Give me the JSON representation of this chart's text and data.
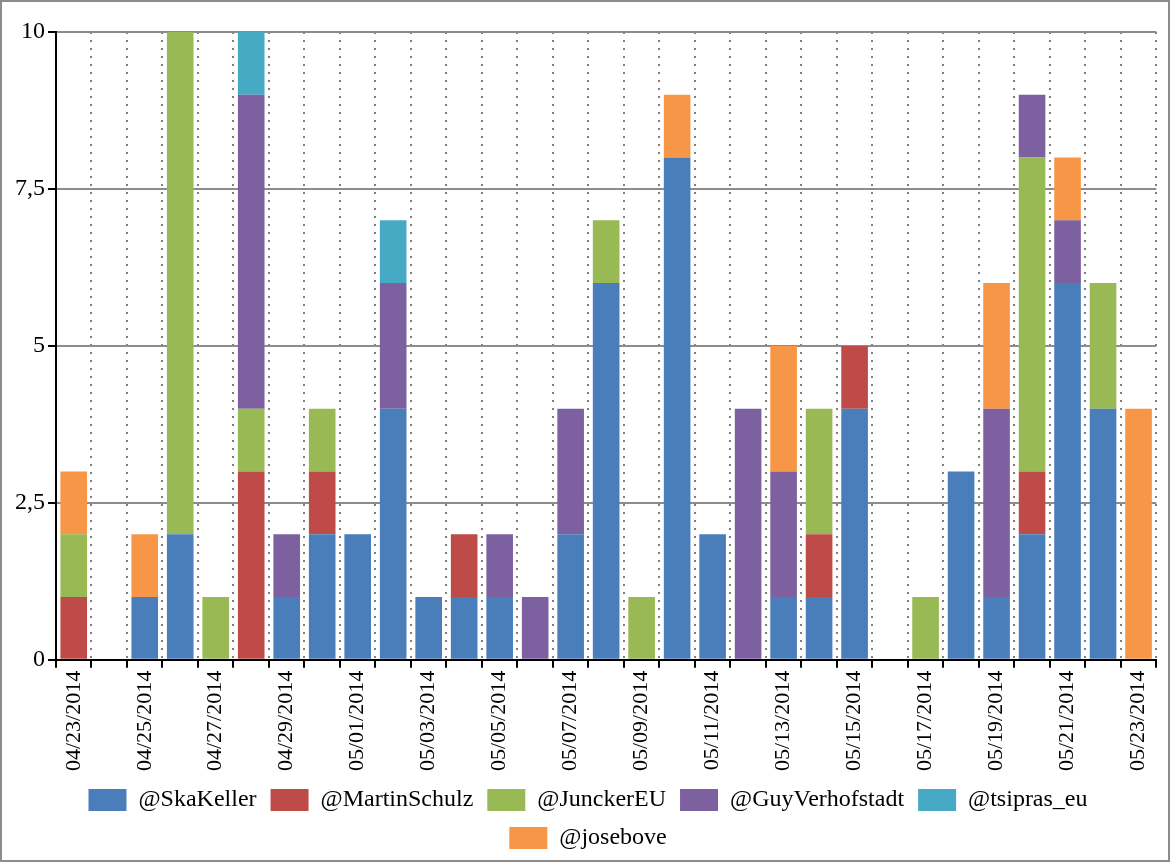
{
  "chart_data": {
    "type": "bar",
    "stacked": true,
    "categories": [
      "04/23/2014",
      null,
      "04/25/2014",
      null,
      "04/27/2014",
      null,
      "04/29/2014",
      null,
      "05/01/2014",
      null,
      "05/03/2014",
      null,
      "05/05/2014",
      null,
      "05/07/2014",
      null,
      "05/09/2014",
      null,
      "05/11/2014",
      null,
      "05/13/2014",
      null,
      "05/15/2014",
      null,
      "05/17/2014",
      null,
      "05/19/2014",
      null,
      "05/21/2014",
      null,
      "05/23/2014"
    ],
    "series": [
      {
        "name": "@SkaKeller",
        "color": "#4a7ebb",
        "values": [
          null,
          null,
          1,
          2,
          null,
          null,
          1,
          2,
          2,
          4,
          1,
          1,
          1,
          null,
          2,
          6,
          null,
          8,
          2,
          null,
          1,
          1,
          4,
          null,
          null,
          3,
          1,
          2,
          6,
          4,
          null
        ]
      },
      {
        "name": "@MartinSchulz",
        "color": "#be4b48",
        "values": [
          1,
          null,
          null,
          null,
          null,
          3,
          null,
          1,
          null,
          null,
          null,
          1,
          null,
          null,
          null,
          null,
          null,
          null,
          null,
          null,
          null,
          1,
          1,
          null,
          null,
          null,
          null,
          1,
          null,
          null,
          null
        ]
      },
      {
        "name": "@JunckerEU",
        "color": "#98b954",
        "values": [
          1,
          null,
          null,
          8,
          1,
          1,
          null,
          1,
          null,
          null,
          null,
          null,
          null,
          null,
          null,
          1,
          1,
          null,
          null,
          null,
          null,
          2,
          null,
          null,
          1,
          null,
          null,
          5,
          null,
          2,
          null
        ]
      },
      {
        "name": "@GuyVerhofstadt",
        "color": "#7d60a0",
        "values": [
          null,
          null,
          null,
          null,
          null,
          5,
          1,
          null,
          null,
          2,
          null,
          null,
          1,
          1,
          2,
          null,
          null,
          null,
          null,
          4,
          2,
          null,
          null,
          null,
          null,
          null,
          3,
          1,
          1,
          null,
          null
        ]
      },
      {
        "name": "@tsipras_eu",
        "color": "#46aac5",
        "values": [
          null,
          null,
          null,
          null,
          null,
          1,
          null,
          null,
          null,
          1,
          null,
          null,
          null,
          null,
          null,
          null,
          null,
          null,
          null,
          null,
          null,
          null,
          null,
          null,
          null,
          null,
          null,
          null,
          null,
          null,
          null
        ]
      },
      {
        "name": "@josebove",
        "color": "#f79646",
        "values": [
          1,
          null,
          1,
          null,
          null,
          null,
          null,
          null,
          null,
          null,
          null,
          null,
          null,
          null,
          null,
          null,
          null,
          1,
          null,
          null,
          2,
          null,
          null,
          null,
          null,
          null,
          2,
          null,
          1,
          null,
          4
        ]
      }
    ],
    "ylim": [
      0,
      10
    ],
    "yticks": [
      0,
      {
        "value": 2.5,
        "label": "2,5"
      },
      5,
      {
        "value": 7.5,
        "label": "7,5"
      },
      10
    ],
    "grid": true,
    "legend": "bottom"
  }
}
